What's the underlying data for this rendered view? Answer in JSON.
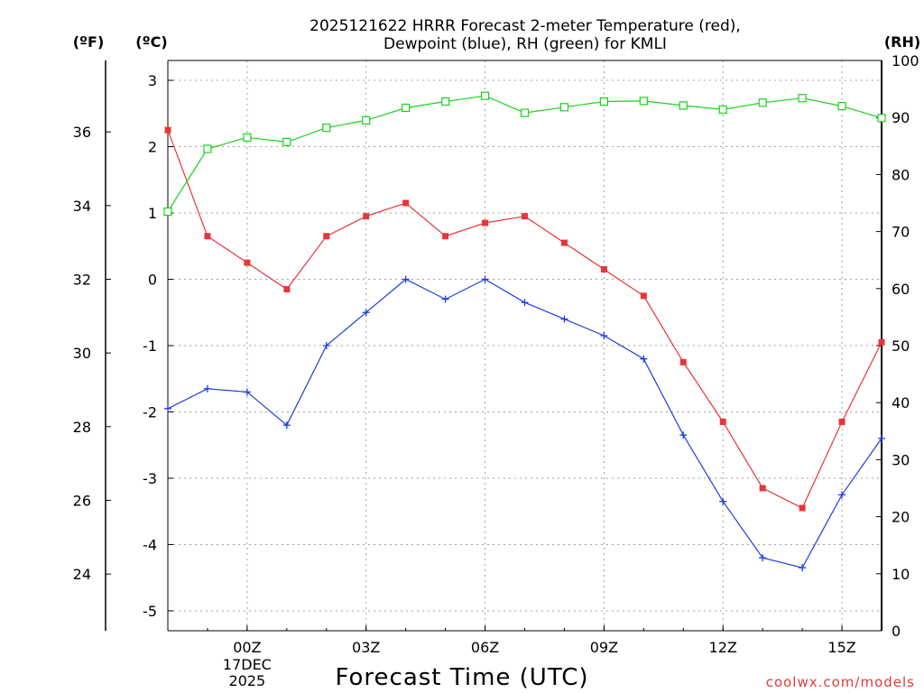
{
  "chart_data": {
    "type": "line",
    "title_line1": "2025121622 HRRR Forecast 2-meter Temperature (red),",
    "title_line2": "Dewpoint (blue), RH (green) for KMLI",
    "xlabel": "Forecast Time (UTC)",
    "credit": "coolwx.com/models",
    "unit_f": "(ºF)",
    "unit_c": "(ºC)",
    "unit_rh": "(RH)",
    "x_hours": [
      22,
      23,
      24,
      25,
      26,
      27,
      28,
      29,
      30,
      31,
      32,
      33,
      34,
      35,
      36,
      37,
      38,
      39,
      40
    ],
    "x_range": [
      22,
      40
    ],
    "x_ticks": [
      {
        "hour": 24,
        "label": "00Z"
      },
      {
        "hour": 27,
        "label": "03Z"
      },
      {
        "hour": 30,
        "label": "06Z"
      },
      {
        "hour": 33,
        "label": "09Z"
      },
      {
        "hour": 36,
        "label": "12Z"
      },
      {
        "hour": 39,
        "label": "15Z"
      }
    ],
    "date_label": {
      "hour": 24,
      "day": "17DEC",
      "year": "2025"
    },
    "c_range": [
      -5.3,
      3.3
    ],
    "c_ticks": [
      3,
      2,
      1,
      0,
      -1,
      -2,
      -3,
      -4,
      -5
    ],
    "f_ticks": [
      36,
      34,
      32,
      30,
      28,
      26,
      24
    ],
    "rh_range": [
      0,
      100
    ],
    "rh_ticks": [
      100,
      90,
      80,
      70,
      60,
      50,
      40,
      30,
      20,
      10,
      0
    ],
    "series": [
      {
        "name": "Temperature",
        "unit": "C",
        "color": "#e8343a",
        "marker": "filled-square",
        "values": [
          2.25,
          0.65,
          0.25,
          -0.15,
          0.65,
          0.95,
          1.15,
          0.65,
          0.85,
          0.95,
          0.55,
          0.15,
          -0.25,
          -1.25,
          -2.15,
          -3.15,
          -3.45,
          -2.15,
          -0.95
        ]
      },
      {
        "name": "Dewpoint",
        "unit": "C",
        "color": "#1c3ee0",
        "marker": "plus",
        "values": [
          -1.95,
          -1.65,
          -1.7,
          -2.2,
          -1.0,
          -0.5,
          0.0,
          -0.3,
          0.0,
          -0.35,
          -0.6,
          -0.85,
          -1.2,
          -2.35,
          -3.35,
          -4.2,
          -4.35,
          -3.25,
          -2.4
        ]
      },
      {
        "name": "RH",
        "unit": "%",
        "color": "#1ad21a",
        "marker": "open-square",
        "values": [
          73.5,
          84.5,
          86.5,
          85.7,
          88.2,
          89.5,
          91.7,
          92.8,
          93.8,
          90.8,
          91.8,
          92.8,
          92.9,
          92.1,
          91.4,
          92.6,
          93.4,
          92.0,
          89.9
        ]
      }
    ]
  }
}
